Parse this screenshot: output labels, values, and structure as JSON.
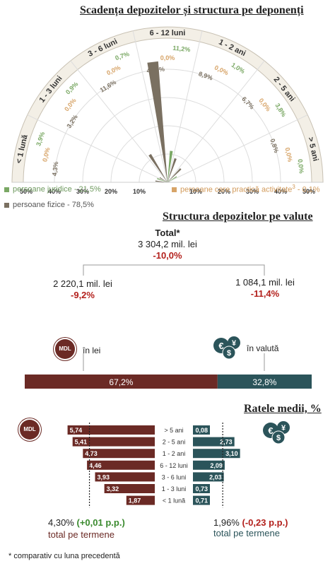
{
  "radial": {
    "title": "Scadența depozitelor și structura pe deponenți",
    "colors": {
      "juridice": "#7aa864",
      "activitate": "#d7a468",
      "fizice": "#7a7061"
    },
    "categories": [
      "< 1 lună",
      "1 - 3 luni",
      "3 - 6 luni",
      "6 - 12 luni",
      "1 - 2 ani",
      "2 - 5 ani",
      "> 5 ani"
    ],
    "grid_left": [
      "50%",
      "40%",
      "30%",
      "20%",
      "10%"
    ],
    "grid_right": [
      "10%",
      "20%",
      "30%",
      "40%",
      "50%"
    ],
    "legend": {
      "juridice": "persoane juridice - 21,5%",
      "activitate_pre": "persoane care practică activitate",
      "activitate_sup": "3",
      "activitate_post": " - 0,1%",
      "fizice": "persoane fizice - 78,5%"
    }
  },
  "chart_data": [
    {
      "type": "bar",
      "subtype": "radial",
      "title": "Scadența depozitelor și structura pe deponenți",
      "categories": [
        "< 1 lună",
        "1 - 3 luni",
        "3 - 6 luni",
        "6 - 12 luni",
        "1 - 2 ani",
        "2 - 5 ani",
        "> 5 ani"
      ],
      "series": [
        {
          "name": "persoane juridice - 21,5%",
          "values": [
            3.9,
            0.9,
            0.7,
            11.2,
            1.0,
            3.8,
            0.0
          ],
          "labels": [
            "3,9%",
            "0,9%",
            "0,7%",
            "11,2%",
            "1,0%",
            "3,8%",
            "0,0%"
          ]
        },
        {
          "name": "persoane care practică activitate - 0,1%",
          "values": [
            0.0,
            0.0,
            0.0,
            0.0,
            0.0,
            0.0,
            0.0
          ],
          "labels": [
            "0,0%",
            "0,0%",
            "0,0%",
            "0,0%",
            "0,0%",
            "0,0%",
            "0,0%"
          ]
        },
        {
          "name": "persoane fizice - 78,5%",
          "values": [
            4.3,
            3.2,
            11.6,
            42.9,
            8.9,
            6.7,
            0.8
          ],
          "labels": [
            "4,3%",
            "3,2%",
            "11,6%",
            "42,9%",
            "8,9%",
            "6,7%",
            "0,8%"
          ]
        }
      ],
      "ylim": [
        0,
        50
      ]
    },
    {
      "type": "bar",
      "subtype": "stacked-100",
      "title": "Structura depozitelor pe valute",
      "categories": [
        "în lei",
        "în valută"
      ],
      "values": [
        67.2,
        32.8
      ],
      "labels": [
        "67,2%",
        "32,8%"
      ]
    },
    {
      "type": "bar",
      "subtype": "horizontal-back-to-back",
      "title": "Ratele medii, %",
      "categories": [
        "> 5 ani",
        "2 - 5 ani",
        "1 - 2 ani",
        "6 - 12 luni",
        "3 - 6 luni",
        "1 - 3 luni",
        "< 1 lună"
      ],
      "series": [
        {
          "name": "MDL",
          "values": [
            5.74,
            5.41,
            4.73,
            4.46,
            3.93,
            3.32,
            1.87
          ],
          "labels": [
            "5,74",
            "5,41",
            "4,73",
            "4,46",
            "3,93",
            "3,32",
            "1,87"
          ],
          "total": 4.3
        },
        {
          "name": "valută",
          "values": [
            0.08,
            2.73,
            3.1,
            2.09,
            2.03,
            0.73,
            0.71
          ],
          "labels": [
            "0,08",
            "2,73",
            "3,10",
            "2,09",
            "2,03",
            "0,73",
            "0,71"
          ],
          "total": 1.96
        }
      ]
    }
  ],
  "currency": {
    "title": "Structura depozitelor pe valute",
    "total_label": "Total*",
    "total_value": "3 304,2 mil. lei",
    "total_change": "-10,0%",
    "lei_value": "2 220,1 mil. lei",
    "lei_change": "-9,2%",
    "fx_value": "1 084,1 mil. lei",
    "fx_change": "-11,4%",
    "lei_label": "în lei",
    "fx_label": "în valută",
    "mdl_badge": "MDL",
    "fx_icon": "currency-coins-icon",
    "lei_color": "#6b2a25",
    "fx_color": "#2b545a"
  },
  "rates": {
    "title": "Ratele medii, %",
    "mdl_badge": "MDL",
    "lei_total": "4,30%",
    "lei_delta": "(+0,01 p.p.)",
    "lei_total_label": "total pe termene",
    "fx_total": "1,96%",
    "fx_delta": "(-0,23 p.p.)",
    "fx_total_label": "total pe termene",
    "delta_pos_color": "#3a8a2e",
    "delta_neg_color": "#b3201c"
  },
  "footnote": "* comparativ cu luna precedentă"
}
